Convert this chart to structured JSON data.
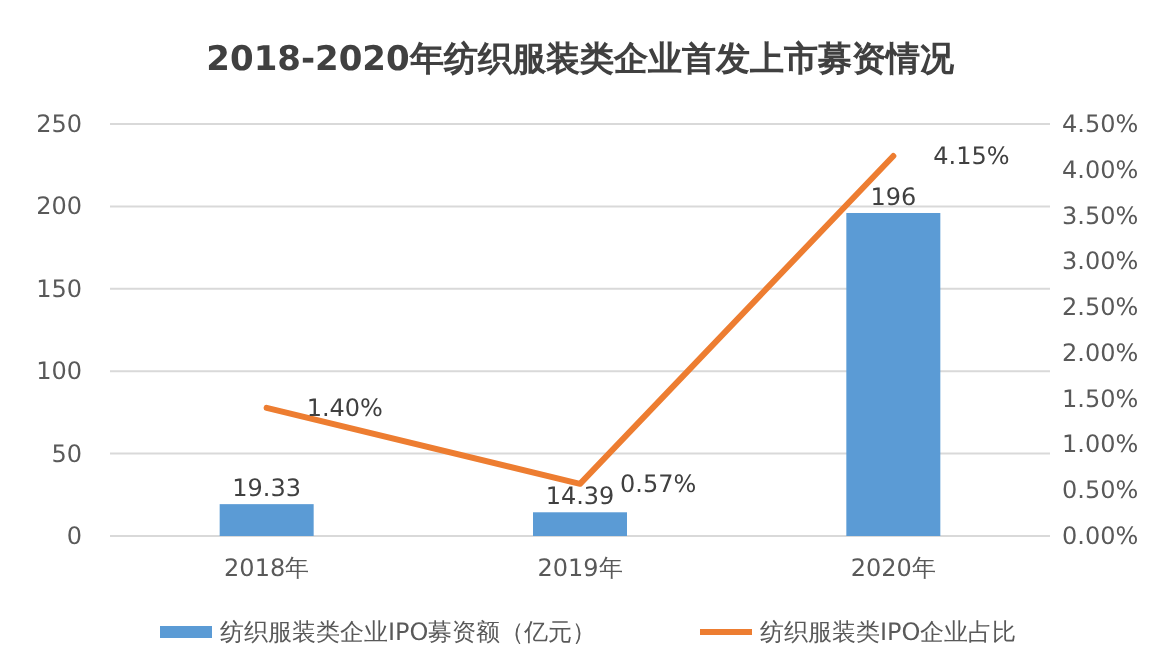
{
  "chart_data": {
    "type": "bar",
    "title": "2018-2020年纺织服装类企业首发上市募资情况",
    "categories": [
      "2018年",
      "2019年",
      "2020年"
    ],
    "series": [
      {
        "name": "纺织服装类企业IPO募资额（亿元）",
        "color": "#5b9bd5",
        "values": [
          19.33,
          14.39,
          196
        ],
        "value_labels": [
          "19.33",
          "14.39",
          "196"
        ]
      },
      {
        "name": "纺织服装类IPO企业占比",
        "type": "line",
        "axis": "y2",
        "color": "#ed7d31",
        "values": [
          1.4,
          0.57,
          4.15
        ],
        "value_labels": [
          "1.40%",
          "0.57%",
          "4.15%"
        ]
      }
    ],
    "ylim": [
      0,
      250
    ],
    "yticks": [
      0,
      50,
      100,
      150,
      200,
      250
    ],
    "y2lim": [
      0,
      4.5
    ],
    "y2ticks": [
      {
        "value": 0,
        "label": "0.00%"
      },
      {
        "value": 0.5,
        "label": "0.50%"
      },
      {
        "value": 1,
        "label": "1.00%"
      },
      {
        "value": 1.5,
        "label": "1.50%"
      },
      {
        "value": 2,
        "label": "2.00%"
      },
      {
        "value": 2.5,
        "label": "2.50%"
      },
      {
        "value": 3,
        "label": "3.00%"
      },
      {
        "value": 3.5,
        "label": "3.50%"
      },
      {
        "value": 4,
        "label": "4.00%"
      },
      {
        "value": 4.5,
        "label": "4.50%"
      }
    ],
    "grid": "y",
    "legend": "bottom",
    "marker": "none",
    "line_style": "solid"
  }
}
